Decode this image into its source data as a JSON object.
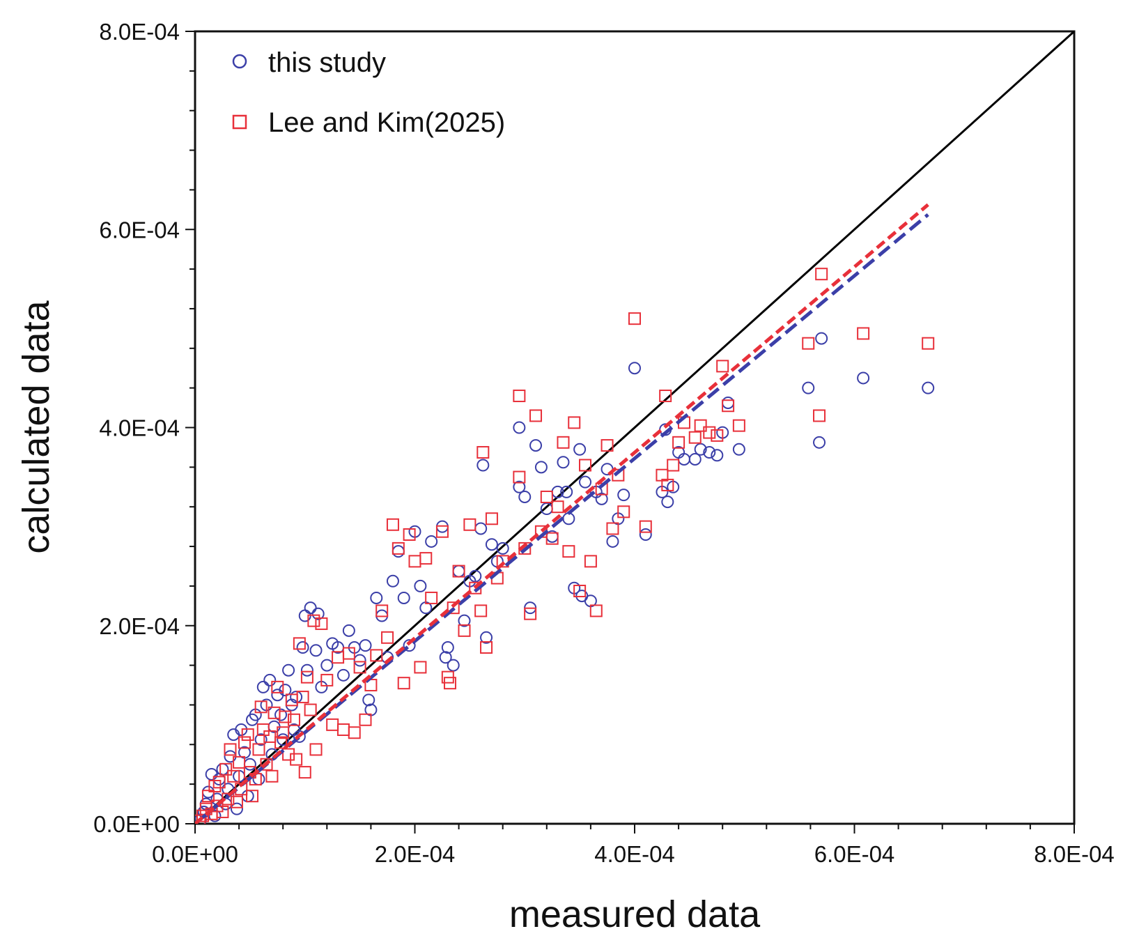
{
  "chart_data": {
    "type": "scatter",
    "title": "",
    "xlabel": "measured data",
    "ylabel": "calculated data",
    "xlim": [
      0,
      0.0008
    ],
    "ylim": [
      0,
      0.0008
    ],
    "x_ticks": [
      "0.0E+00",
      "2.0E-04",
      "4.0E-04",
      "6.0E-04",
      "8.0E-04"
    ],
    "y_ticks": [
      "0.0E+00",
      "2.0E-04",
      "4.0E-04",
      "6.0E-04",
      "8.0E-04"
    ],
    "grid": false,
    "legend_position": "top-left",
    "reference_line": {
      "from": [
        0,
        0
      ],
      "to": [
        0.0008,
        0.0008
      ],
      "color": "#000000",
      "style": "solid"
    },
    "series": [
      {
        "name": "this study",
        "marker": "circle",
        "color": "#3b3fa8",
        "fit_line": {
          "from": [
            0,
            0
          ],
          "to": [
            0.000667,
            0.000615
          ],
          "style": "dashed"
        },
        "points": [
          [
            5e-06,
            4e-06
          ],
          [
            8e-06,
            1.2e-05
          ],
          [
            1e-05,
            2e-05
          ],
          [
            1.2e-05,
            3.2e-05
          ],
          [
            1.5e-05,
            5e-05
          ],
          [
            1.8e-05,
            8e-06
          ],
          [
            2e-05,
            2.5e-05
          ],
          [
            2.2e-05,
            4.5e-05
          ],
          [
            2.5e-05,
            5.5e-05
          ],
          [
            2.8e-05,
            2e-05
          ],
          [
            3e-05,
            3.5e-05
          ],
          [
            3.2e-05,
            6.8e-05
          ],
          [
            3.5e-05,
            9e-05
          ],
          [
            3.8e-05,
            1.5e-05
          ],
          [
            4e-05,
            4.8e-05
          ],
          [
            4.2e-05,
            9.5e-05
          ],
          [
            4.5e-05,
            7.2e-05
          ],
          [
            4.8e-05,
            2.8e-05
          ],
          [
            5e-05,
            6e-05
          ],
          [
            5.2e-05,
            0.000105
          ],
          [
            5.5e-05,
            0.00011
          ],
          [
            5.8e-05,
            4.5e-05
          ],
          [
            6e-05,
            8.5e-05
          ],
          [
            6.2e-05,
            0.000138
          ],
          [
            6.5e-05,
            0.00012
          ],
          [
            6.8e-05,
            0.000145
          ],
          [
            7e-05,
            7e-05
          ],
          [
            7.2e-05,
            9.8e-05
          ],
          [
            7.5e-05,
            0.00013
          ],
          [
            7.8e-05,
            0.00011
          ],
          [
            8e-05,
            8.5e-05
          ],
          [
            8.2e-05,
            0.000135
          ],
          [
            8.5e-05,
            0.000155
          ],
          [
            8.8e-05,
            0.00012
          ],
          [
            9e-05,
            9.5e-05
          ],
          [
            9.2e-05,
            0.000128
          ],
          [
            9.5e-05,
            8.8e-05
          ],
          [
            9.8e-05,
            0.000178
          ],
          [
            0.0001,
            0.00021
          ],
          [
            0.000102,
            0.000155
          ],
          [
            0.000105,
            0.000218
          ],
          [
            0.00011,
            0.000175
          ],
          [
            0.000112,
            0.000212
          ],
          [
            0.000115,
            0.000138
          ],
          [
            0.00012,
            0.00016
          ],
          [
            0.000125,
            0.000182
          ],
          [
            0.00013,
            0.000178
          ],
          [
            0.000135,
            0.00015
          ],
          [
            0.00014,
            0.000195
          ],
          [
            0.000145,
            0.000178
          ],
          [
            0.00015,
            0.000165
          ],
          [
            0.000155,
            0.00018
          ],
          [
            0.000158,
            0.000125
          ],
          [
            0.00016,
            0.000115
          ],
          [
            0.000165,
            0.000228
          ],
          [
            0.00017,
            0.00021
          ],
          [
            0.000175,
            0.000168
          ],
          [
            0.00018,
            0.000245
          ],
          [
            0.000185,
            0.000275
          ],
          [
            0.00019,
            0.000228
          ],
          [
            0.000195,
            0.00018
          ],
          [
            0.0002,
            0.000295
          ],
          [
            0.000205,
            0.00024
          ],
          [
            0.00021,
            0.000218
          ],
          [
            0.000215,
            0.000285
          ],
          [
            0.000225,
            0.0003
          ],
          [
            0.000228,
            0.000168
          ],
          [
            0.00023,
            0.000178
          ],
          [
            0.000235,
            0.00016
          ],
          [
            0.00024,
            0.000255
          ],
          [
            0.000245,
            0.000205
          ],
          [
            0.00025,
            0.000245
          ],
          [
            0.000255,
            0.00025
          ],
          [
            0.00026,
            0.000298
          ],
          [
            0.000262,
            0.000362
          ],
          [
            0.000265,
            0.000188
          ],
          [
            0.00027,
            0.000282
          ],
          [
            0.000275,
            0.000265
          ],
          [
            0.00028,
            0.000278
          ],
          [
            0.000295,
            0.00034
          ],
          [
            0.000295,
            0.0004
          ],
          [
            0.0003,
            0.00033
          ],
          [
            0.000305,
            0.000218
          ],
          [
            0.00031,
            0.000382
          ],
          [
            0.000315,
            0.00036
          ],
          [
            0.00032,
            0.000318
          ],
          [
            0.000325,
            0.00029
          ],
          [
            0.00033,
            0.000335
          ],
          [
            0.000335,
            0.000365
          ],
          [
            0.000338,
            0.000335
          ],
          [
            0.00034,
            0.000308
          ],
          [
            0.000345,
            0.000238
          ],
          [
            0.00035,
            0.000378
          ],
          [
            0.000352,
            0.00023
          ],
          [
            0.000355,
            0.000345
          ],
          [
            0.00036,
            0.000225
          ],
          [
            0.000365,
            0.000335
          ],
          [
            0.00037,
            0.000328
          ],
          [
            0.000375,
            0.000358
          ],
          [
            0.00038,
            0.000285
          ],
          [
            0.000385,
            0.000308
          ],
          [
            0.00039,
            0.000332
          ],
          [
            0.0004,
            0.00046
          ],
          [
            0.00041,
            0.000292
          ],
          [
            0.000425,
            0.000335
          ],
          [
            0.000428,
            0.000398
          ],
          [
            0.00043,
            0.000325
          ],
          [
            0.000435,
            0.00034
          ],
          [
            0.00044,
            0.000375
          ],
          [
            0.000445,
            0.000368
          ],
          [
            0.000455,
            0.000368
          ],
          [
            0.00046,
            0.000378
          ],
          [
            0.000468,
            0.000375
          ],
          [
            0.000475,
            0.000372
          ],
          [
            0.00048,
            0.000395
          ],
          [
            0.000485,
            0.000425
          ],
          [
            0.000495,
            0.000378
          ],
          [
            0.000558,
            0.00044
          ],
          [
            0.000568,
            0.000385
          ],
          [
            0.00057,
            0.00049
          ],
          [
            0.000608,
            0.00045
          ],
          [
            0.000667,
            0.00044
          ]
        ]
      },
      {
        "name": "Lee and Kim(2025)",
        "marker": "square",
        "color": "#e8303a",
        "fit_line": {
          "from": [
            0,
            0
          ],
          "to": [
            0.000667,
            0.000625
          ],
          "style": "dashed"
        },
        "points": [
          [
            4e-06,
            3e-06
          ],
          [
            7e-06,
            8e-06
          ],
          [
            1e-05,
            1.5e-05
          ],
          [
            1.2e-05,
            2.8e-05
          ],
          [
            1.5e-05,
            1e-05
          ],
          [
            1.8e-05,
            3.8e-05
          ],
          [
            2e-05,
            1.8e-05
          ],
          [
            2.2e-05,
            4.2e-05
          ],
          [
            2.5e-05,
            1.2e-05
          ],
          [
            2.8e-05,
            5.5e-05
          ],
          [
            3e-05,
            2.5e-05
          ],
          [
            3.2e-05,
            7.5e-05
          ],
          [
            3.5e-05,
            4.8e-05
          ],
          [
            3.8e-05,
            2.2e-05
          ],
          [
            4e-05,
            6.2e-05
          ],
          [
            4.2e-05,
            3.5e-05
          ],
          [
            4.5e-05,
            8.2e-05
          ],
          [
            4.8e-05,
            9e-05
          ],
          [
            5e-05,
            5.2e-05
          ],
          [
            5.2e-05,
            2.8e-05
          ],
          [
            5.5e-05,
            4.5e-05
          ],
          [
            5.8e-05,
            7.5e-05
          ],
          [
            6e-05,
            0.000118
          ],
          [
            6.2e-05,
            9.5e-05
          ],
          [
            6.5e-05,
            6e-05
          ],
          [
            6.8e-05,
            8.8e-05
          ],
          [
            7e-05,
            4.8e-05
          ],
          [
            7.2e-05,
            0.000112
          ],
          [
            7.5e-05,
            0.000138
          ],
          [
            7.8e-05,
            8.2e-05
          ],
          [
            8e-05,
            9.2e-05
          ],
          [
            8.2e-05,
            0.000108
          ],
          [
            8.5e-05,
            7e-05
          ],
          [
            8.8e-05,
            0.000125
          ],
          [
            9e-05,
            0.000105
          ],
          [
            9.2e-05,
            6.5e-05
          ],
          [
            9.5e-05,
            0.000182
          ],
          [
            9.8e-05,
            0.000128
          ],
          [
            0.0001,
            5.2e-05
          ],
          [
            0.000102,
            0.000148
          ],
          [
            0.000105,
            0.000115
          ],
          [
            0.000108,
            0.000205
          ],
          [
            0.00011,
            7.5e-05
          ],
          [
            0.000115,
            0.000202
          ],
          [
            0.00012,
            0.000145
          ],
          [
            0.000125,
            0.0001
          ],
          [
            0.00013,
            0.000168
          ],
          [
            0.000135,
            9.5e-05
          ],
          [
            0.00014,
            0.000172
          ],
          [
            0.000145,
            9.2e-05
          ],
          [
            0.00015,
            0.000158
          ],
          [
            0.000155,
            0.000105
          ],
          [
            0.00016,
            0.00014
          ],
          [
            0.000165,
            0.00017
          ],
          [
            0.00017,
            0.000215
          ],
          [
            0.000175,
            0.000188
          ],
          [
            0.00018,
            0.000302
          ],
          [
            0.000185,
            0.000278
          ],
          [
            0.00019,
            0.000142
          ],
          [
            0.000195,
            0.000292
          ],
          [
            0.0002,
            0.000265
          ],
          [
            0.000205,
            0.000158
          ],
          [
            0.00021,
            0.000268
          ],
          [
            0.000215,
            0.000228
          ],
          [
            0.000225,
            0.000295
          ],
          [
            0.00023,
            0.000148
          ],
          [
            0.000232,
            0.000142
          ],
          [
            0.000235,
            0.000218
          ],
          [
            0.00024,
            0.000255
          ],
          [
            0.000245,
            0.000195
          ],
          [
            0.00025,
            0.000302
          ],
          [
            0.000255,
            0.000238
          ],
          [
            0.00026,
            0.000215
          ],
          [
            0.000262,
            0.000375
          ],
          [
            0.000265,
            0.000178
          ],
          [
            0.00027,
            0.000308
          ],
          [
            0.000275,
            0.000248
          ],
          [
            0.00028,
            0.000265
          ],
          [
            0.000295,
            0.000432
          ],
          [
            0.000295,
            0.00035
          ],
          [
            0.0003,
            0.000278
          ],
          [
            0.000305,
            0.000212
          ],
          [
            0.00031,
            0.000412
          ],
          [
            0.000315,
            0.000295
          ],
          [
            0.00032,
            0.00033
          ],
          [
            0.000325,
            0.000288
          ],
          [
            0.00033,
            0.00032
          ],
          [
            0.000335,
            0.000385
          ],
          [
            0.00034,
            0.000275
          ],
          [
            0.000345,
            0.000405
          ],
          [
            0.00035,
            0.000235
          ],
          [
            0.000355,
            0.000362
          ],
          [
            0.00036,
            0.000265
          ],
          [
            0.000365,
            0.000215
          ],
          [
            0.00037,
            0.000338
          ],
          [
            0.000375,
            0.000382
          ],
          [
            0.00038,
            0.000298
          ],
          [
            0.000385,
            0.000352
          ],
          [
            0.00039,
            0.000315
          ],
          [
            0.0004,
            0.00051
          ],
          [
            0.00041,
            0.0003
          ],
          [
            0.000425,
            0.000352
          ],
          [
            0.000428,
            0.000432
          ],
          [
            0.00043,
            0.000342
          ],
          [
            0.000435,
            0.000362
          ],
          [
            0.00044,
            0.000385
          ],
          [
            0.000445,
            0.000405
          ],
          [
            0.000455,
            0.00039
          ],
          [
            0.00046,
            0.000402
          ],
          [
            0.000468,
            0.000395
          ],
          [
            0.000475,
            0.000392
          ],
          [
            0.00048,
            0.000462
          ],
          [
            0.000485,
            0.000422
          ],
          [
            0.000495,
            0.000402
          ],
          [
            0.000558,
            0.000485
          ],
          [
            0.000568,
            0.000412
          ],
          [
            0.00057,
            0.000555
          ],
          [
            0.000608,
            0.000495
          ],
          [
            0.000667,
            0.000485
          ]
        ]
      }
    ]
  }
}
